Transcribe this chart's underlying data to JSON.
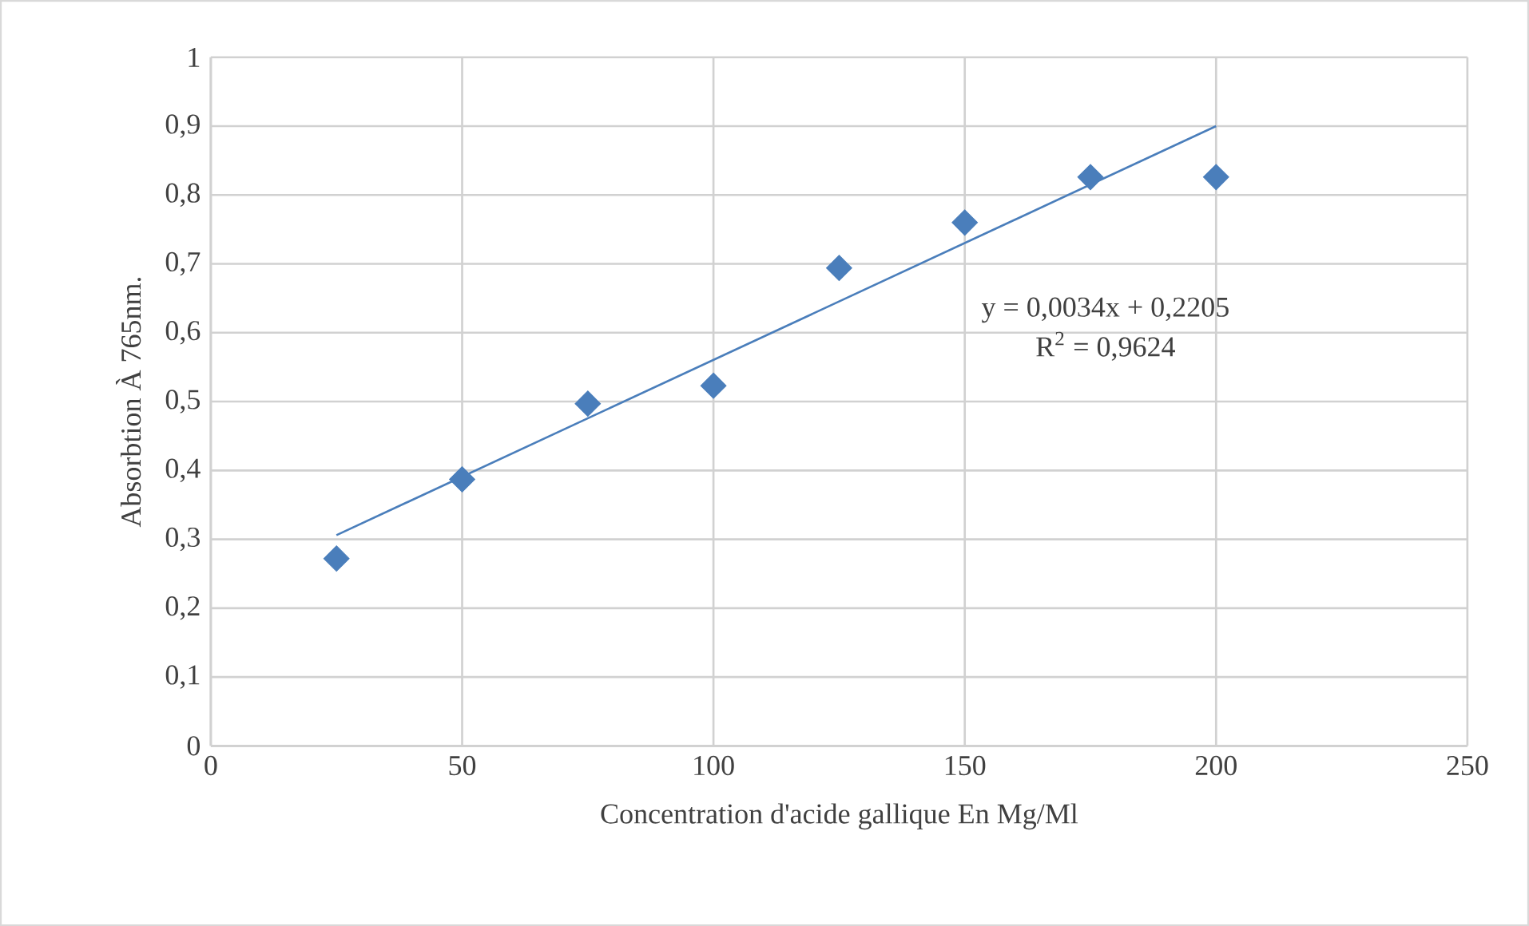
{
  "chart_data": {
    "type": "scatter",
    "xlabel": "Concentration d'acide gallique En Mg/Ml",
    "ylabel": "Absorbtion À 765nm.",
    "series": [
      {
        "color": "#4a7ebb",
        "marker": "diamond",
        "x": [
          25,
          50,
          75,
          100,
          125,
          150,
          175,
          200
        ],
        "values": [
          0.272,
          0.387,
          0.497,
          0.523,
          0.694,
          0.76,
          0.826,
          0.826
        ]
      },
      {
        "type": "line",
        "color": "#4a7ebb",
        "line_style": "solid",
        "x": [
          25,
          200
        ],
        "values": [
          0.306,
          0.9
        ]
      }
    ],
    "annotations": [
      "y = 0,0034x + 0,2205",
      "R$^{2}$ = 0,9624"
    ],
    "xlim": [
      0,
      250
    ],
    "xticks": [
      0,
      50,
      100,
      150,
      200,
      250
    ],
    "ylim": [
      0,
      1
    ],
    "yticks": [
      0,
      {
        "value": 0.1,
        "label": "0,1"
      },
      {
        "value": 0.2,
        "label": "0,2"
      },
      {
        "value": 0.3,
        "label": "0,3"
      },
      {
        "value": 0.4,
        "label": "0,4"
      },
      {
        "value": 0.5,
        "label": "0,5"
      },
      {
        "value": 0.6,
        "label": "0,6"
      },
      {
        "value": 0.7,
        "label": "0,7"
      },
      {
        "value": 0.8,
        "label": "0,8"
      },
      {
        "value": 0.9,
        "label": "0,9"
      },
      1
    ],
    "grid": true
  }
}
